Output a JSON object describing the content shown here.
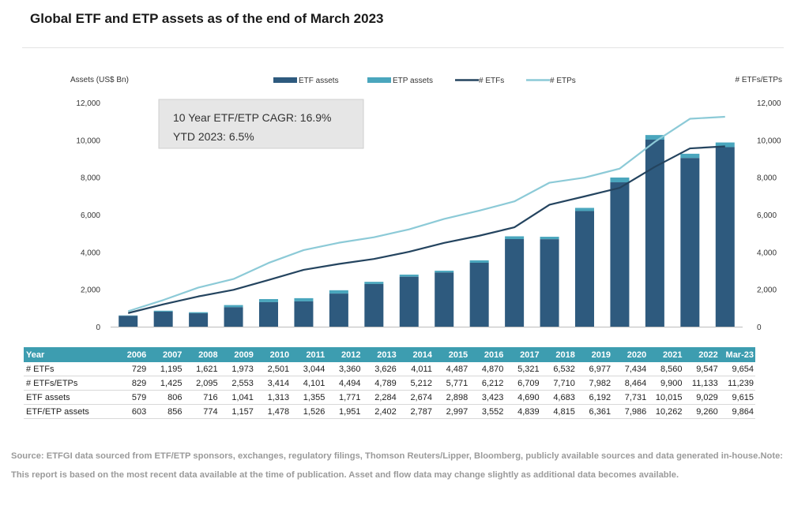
{
  "page": {
    "title": "Global ETF and ETP assets as of the end of March 2023",
    "source": "Source: ETFGI data sourced from ETF/ETP sponsors, exchanges, regulatory filings, Thomson Reuters/Lipper, Bloomberg, publicly available sources and data generated in-house.Note: This report is based on the most recent data available at the time of publication. Asset and flow data may change slightly as additional data becomes available."
  },
  "annotation": {
    "line1": "10 Year ETF/ETP CAGR: 16.9%",
    "line2": "YTD 2023: 6.5%"
  },
  "colors": {
    "etf_assets": "#2e5a7e",
    "etp_assets": "#4aa6bd",
    "num_etfs": "#24445f",
    "num_etfs_etps": "#8ccad7",
    "table_header": "#3d9db0"
  },
  "chart_data": {
    "type": "bar",
    "categories": [
      "2006",
      "2007",
      "2008",
      "2009",
      "2010",
      "2011",
      "2012",
      "2013",
      "2014",
      "2015",
      "2016",
      "2017",
      "2018",
      "2019",
      "2020",
      "2021",
      "2022",
      "Mar-23"
    ],
    "ylabel": "Assets (US$ Bn)",
    "y2label": "# ETFs/ETPs",
    "ylim": [
      0,
      12000
    ],
    "y2lim": [
      0,
      12000
    ],
    "yticks": [
      "0",
      "2,000",
      "4,000",
      "6,000",
      "8,000",
      "10,000",
      "12,000"
    ],
    "y2ticks": [
      "0",
      "2,000",
      "4,000",
      "6,000",
      "8,000",
      "10,000",
      "12,000"
    ],
    "grid": false,
    "legend_position": "top",
    "series": [
      {
        "name": "ETF assets",
        "type": "bar",
        "values": [
          579,
          806,
          716,
          1041,
          1313,
          1355,
          1771,
          2284,
          2674,
          2898,
          3423,
          4690,
          4683,
          6192,
          7731,
          10015,
          9029,
          9615
        ]
      },
      {
        "name": "ETP assets",
        "type": "bar",
        "stacked_total": "ETF/ETP assets",
        "values": [
          603,
          856,
          774,
          1157,
          1478,
          1526,
          1951,
          2402,
          2787,
          2997,
          3552,
          4839,
          4815,
          6361,
          7986,
          10262,
          9260,
          9864
        ]
      },
      {
        "name": "# ETFs",
        "type": "line",
        "axis": "right",
        "values": [
          729,
          1195,
          1621,
          1973,
          2501,
          3044,
          3360,
          3626,
          4011,
          4487,
          4870,
          5321,
          6532,
          6977,
          7434,
          8560,
          9547,
          9654
        ]
      },
      {
        "name": "# ETPs",
        "type": "line",
        "axis": "right",
        "values": [
          829,
          1425,
          2095,
          2553,
          3414,
          4101,
          4494,
          4789,
          5212,
          5771,
          6212,
          6709,
          7710,
          7982,
          8464,
          9900,
          11133,
          11239
        ]
      }
    ]
  },
  "table": {
    "header": [
      "Year",
      "2006",
      "2007",
      "2008",
      "2009",
      "2010",
      "2011",
      "2012",
      "2013",
      "2014",
      "2015",
      "2016",
      "2017",
      "2018",
      "2019",
      "2020",
      "2021",
      "2022",
      "Mar-23"
    ],
    "rows": [
      [
        "# ETFs",
        "729",
        "1,195",
        "1,621",
        "1,973",
        "2,501",
        "3,044",
        "3,360",
        "3,626",
        "4,011",
        "4,487",
        "4,870",
        "5,321",
        "6,532",
        "6,977",
        "7,434",
        "8,560",
        "9,547",
        "9,654"
      ],
      [
        "# ETFs/ETPs",
        "829",
        "1,425",
        "2,095",
        "2,553",
        "3,414",
        "4,101",
        "4,494",
        "4,789",
        "5,212",
        "5,771",
        "6,212",
        "6,709",
        "7,710",
        "7,982",
        "8,464",
        "9,900",
        "11,133",
        "11,239"
      ],
      [
        "ETF assets",
        "579",
        "806",
        "716",
        "1,041",
        "1,313",
        "1,355",
        "1,771",
        "2,284",
        "2,674",
        "2,898",
        "3,423",
        "4,690",
        "4,683",
        "6,192",
        "7,731",
        "10,015",
        "9,029",
        "9,615"
      ],
      [
        "ETF/ETP assets",
        "603",
        "856",
        "774",
        "1,157",
        "1,478",
        "1,526",
        "1,951",
        "2,402",
        "2,787",
        "2,997",
        "3,552",
        "4,839",
        "4,815",
        "6,361",
        "7,986",
        "10,262",
        "9,260",
        "9,864"
      ]
    ]
  }
}
